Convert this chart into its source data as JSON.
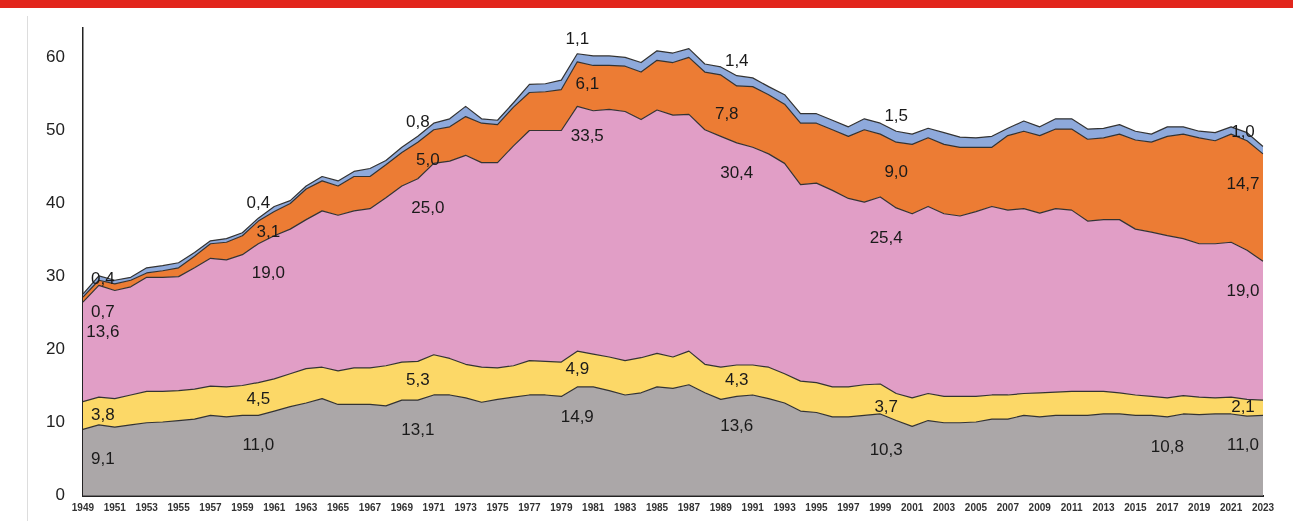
{
  "chart_data": {
    "type": "area",
    "stacked": true,
    "categories": [
      "1949",
      null,
      "1951",
      null,
      "1953",
      null,
      "1955",
      null,
      "1957",
      null,
      "1959",
      null,
      "1961",
      null,
      "1963",
      null,
      "1965",
      null,
      "1967",
      null,
      "1969",
      null,
      "1971",
      null,
      "1973",
      null,
      "1975",
      null,
      "1977",
      null,
      "1979",
      null,
      "1981",
      null,
      "1983",
      null,
      "1985",
      null,
      "1987",
      null,
      "1989",
      null,
      "1991",
      null,
      "1993",
      null,
      "1995",
      null,
      "1997",
      null,
      "1999",
      null,
      "2001",
      null,
      "2003",
      null,
      "2005",
      null,
      "2007",
      null,
      "2009",
      null,
      "2011",
      null,
      "2013",
      null,
      "2015",
      null,
      "2017",
      null,
      "2019",
      null,
      "2021",
      null,
      "2023"
    ],
    "ylim": [
      0,
      64
    ],
    "yticks": [
      0,
      10,
      20,
      30,
      40,
      50,
      60
    ],
    "grid": false,
    "legend": false,
    "series": [
      {
        "color": "#aba7a8",
        "values": [
          9.1,
          9.7,
          9.4,
          9.7,
          10.0,
          10.1,
          10.3,
          10.5,
          11.0,
          10.8,
          11.0,
          11.0,
          11.6,
          12.2,
          12.7,
          13.3,
          12.5,
          12.5,
          12.5,
          12.3,
          13.1,
          13.1,
          13.8,
          13.8,
          13.4,
          12.8,
          13.2,
          13.5,
          13.8,
          13.8,
          13.6,
          14.9,
          14.9,
          14.4,
          13.8,
          14.1,
          14.9,
          14.7,
          15.2,
          14.1,
          13.2,
          13.6,
          13.8,
          13.3,
          12.7,
          11.6,
          11.4,
          10.8,
          10.8,
          11.0,
          11.2,
          10.3,
          9.5,
          10.3,
          10.0,
          10.0,
          10.1,
          10.5,
          10.5,
          11.0,
          10.8,
          11.0,
          11.0,
          11.0,
          11.2,
          11.2,
          11.0,
          11.0,
          10.8,
          11.2,
          11.1,
          11.2,
          11.2,
          10.9,
          11.0
        ],
        "value_labels": [
          "9,1",
          null,
          null,
          null,
          null,
          null,
          null,
          null,
          null,
          null,
          null,
          "11,0",
          null,
          null,
          null,
          null,
          null,
          null,
          null,
          null,
          null,
          "13,1",
          null,
          null,
          null,
          null,
          null,
          null,
          null,
          null,
          null,
          "14,9",
          null,
          null,
          null,
          null,
          null,
          null,
          null,
          null,
          null,
          "13,6",
          null,
          null,
          null,
          null,
          null,
          null,
          null,
          null,
          null,
          "10,3",
          null,
          null,
          null,
          null,
          null,
          null,
          null,
          null,
          null,
          null,
          null,
          null,
          null,
          null,
          null,
          null,
          "10,8",
          null,
          null,
          null,
          null,
          null,
          "11,0"
        ]
      },
      {
        "color": "#fcd867",
        "values": [
          3.8,
          3.8,
          3.9,
          4.1,
          4.3,
          4.2,
          4.1,
          4.1,
          4.0,
          4.1,
          4.1,
          4.5,
          4.4,
          4.5,
          4.7,
          4.3,
          4.6,
          5.0,
          5.0,
          5.5,
          5.2,
          5.3,
          5.5,
          5.0,
          4.6,
          4.8,
          4.3,
          4.3,
          4.7,
          4.6,
          4.7,
          4.9,
          4.5,
          4.6,
          4.7,
          4.8,
          4.6,
          4.3,
          4.6,
          3.9,
          4.4,
          4.3,
          4.1,
          4.3,
          4.0,
          4.1,
          4.1,
          4.1,
          4.1,
          4.2,
          4.1,
          3.7,
          3.9,
          3.7,
          3.6,
          3.6,
          3.5,
          3.3,
          3.3,
          3.0,
          3.3,
          3.2,
          3.3,
          3.3,
          3.1,
          2.9,
          2.8,
          2.6,
          2.6,
          2.5,
          2.4,
          2.2,
          2.3,
          2.3,
          2.1
        ],
        "value_labels": [
          "3,8",
          null,
          null,
          null,
          null,
          null,
          null,
          null,
          null,
          null,
          null,
          "4,5",
          null,
          null,
          null,
          null,
          null,
          null,
          null,
          null,
          null,
          "5,3",
          null,
          null,
          null,
          null,
          null,
          null,
          null,
          null,
          null,
          "4,9",
          null,
          null,
          null,
          null,
          null,
          null,
          null,
          null,
          null,
          "4,3",
          null,
          null,
          null,
          null,
          null,
          null,
          null,
          null,
          null,
          "3,7",
          null,
          null,
          null,
          null,
          null,
          null,
          null,
          null,
          null,
          null,
          null,
          null,
          null,
          null,
          null,
          null,
          null,
          null,
          null,
          null,
          null,
          null,
          "2,1"
        ]
      },
      {
        "color": "#e19ec6",
        "values": [
          13.6,
          15.3,
          14.8,
          14.8,
          15.6,
          15.6,
          15.6,
          16.6,
          17.5,
          17.4,
          17.9,
          19.0,
          19.6,
          19.8,
          20.4,
          21.4,
          21.3,
          21.5,
          21.8,
          23.0,
          24.1,
          25.0,
          26.2,
          27.0,
          28.6,
          28.0,
          28.1,
          30.1,
          31.5,
          31.6,
          31.7,
          33.5,
          33.3,
          33.9,
          34.1,
          32.6,
          33.3,
          33.1,
          32.4,
          32.1,
          31.6,
          30.4,
          29.8,
          29.2,
          28.8,
          26.9,
          27.3,
          26.9,
          25.8,
          25.0,
          25.6,
          25.4,
          25.2,
          25.6,
          25.0,
          24.7,
          25.3,
          25.8,
          25.3,
          25.3,
          24.6,
          25.1,
          24.8,
          23.3,
          23.5,
          23.7,
          22.7,
          22.5,
          22.2,
          21.5,
          21.0,
          21.1,
          21.2,
          20.4,
          19.0
        ],
        "value_labels": [
          "13,6",
          null,
          null,
          null,
          null,
          null,
          null,
          null,
          null,
          null,
          null,
          "19,0",
          null,
          null,
          null,
          null,
          null,
          null,
          null,
          null,
          null,
          "25,0",
          null,
          null,
          null,
          null,
          null,
          null,
          null,
          null,
          null,
          "33,5",
          null,
          null,
          null,
          null,
          null,
          null,
          null,
          null,
          null,
          "30,4",
          null,
          null,
          null,
          null,
          null,
          null,
          null,
          null,
          null,
          "25,4",
          null,
          null,
          null,
          null,
          null,
          null,
          null,
          null,
          null,
          null,
          null,
          null,
          null,
          null,
          null,
          null,
          null,
          null,
          null,
          null,
          null,
          null,
          "19,0"
        ]
      },
      {
        "color": "#ec7c34",
        "values": [
          0.7,
          0.7,
          0.9,
          0.9,
          0.6,
          0.9,
          1.2,
          1.6,
          2.0,
          2.4,
          2.6,
          3.1,
          3.3,
          3.5,
          4.2,
          4.1,
          4.0,
          4.7,
          4.4,
          4.5,
          4.6,
          5.0,
          4.6,
          4.7,
          5.3,
          5.4,
          5.2,
          5.3,
          5.2,
          5.3,
          5.6,
          6.1,
          6.2,
          6.0,
          6.2,
          6.5,
          6.8,
          7.2,
          7.8,
          7.9,
          8.4,
          7.8,
          8.3,
          8.1,
          8.1,
          8.4,
          8.2,
          8.3,
          8.5,
          9.9,
          8.6,
          9.0,
          9.5,
          9.4,
          9.5,
          9.4,
          8.8,
          8.1,
          10.2,
          10.6,
          10.6,
          10.9,
          11.1,
          11.2,
          11.2,
          11.7,
          12.2,
          12.3,
          13.6,
          14.3,
          14.5,
          14.1,
          14.8,
          15.0,
          14.7
        ],
        "value_labels": [
          "0,7",
          null,
          null,
          null,
          null,
          null,
          null,
          null,
          null,
          null,
          null,
          "3,1",
          null,
          null,
          null,
          null,
          null,
          null,
          null,
          null,
          null,
          "5,0",
          null,
          null,
          null,
          null,
          null,
          null,
          null,
          null,
          null,
          "6,1",
          null,
          null,
          null,
          null,
          null,
          null,
          null,
          null,
          null,
          "7,8",
          null,
          null,
          null,
          null,
          null,
          null,
          null,
          null,
          null,
          "9,0",
          null,
          null,
          null,
          null,
          null,
          null,
          null,
          null,
          null,
          null,
          null,
          null,
          null,
          null,
          null,
          null,
          null,
          null,
          null,
          null,
          null,
          null,
          "14,7"
        ]
      },
      {
        "color": "#8ea9db",
        "values": [
          0.4,
          0.6,
          0.5,
          0.4,
          0.7,
          0.7,
          0.7,
          0.5,
          0.4,
          0.5,
          0.4,
          0.4,
          0.7,
          0.4,
          0.4,
          0.6,
          0.7,
          0.7,
          1.1,
          0.6,
          0.7,
          0.8,
          0.9,
          1.1,
          1.4,
          0.6,
          0.6,
          0.6,
          1.1,
          1.1,
          1.3,
          1.1,
          1.3,
          1.3,
          1.2,
          1.3,
          1.3,
          1.3,
          1.2,
          1.1,
          1.1,
          1.4,
          1.2,
          1.1,
          1.3,
          1.3,
          1.3,
          1.3,
          1.3,
          1.5,
          1.5,
          1.5,
          1.4,
          1.3,
          1.6,
          1.4,
          1.3,
          1.5,
          1.0,
          1.4,
          1.2,
          1.4,
          1.4,
          1.4,
          1.3,
          1.3,
          1.2,
          1.1,
          1.3,
          1.0,
          0.9,
          1.1,
          1.0,
          1.1,
          1.0
        ],
        "value_labels": [
          "0,4",
          null,
          null,
          null,
          null,
          null,
          null,
          null,
          null,
          null,
          null,
          "0,4",
          null,
          null,
          null,
          null,
          null,
          null,
          null,
          null,
          null,
          "0,8",
          null,
          null,
          null,
          null,
          null,
          null,
          null,
          null,
          null,
          "1,1",
          null,
          null,
          null,
          null,
          null,
          null,
          null,
          null,
          null,
          "1,4",
          null,
          null,
          null,
          null,
          null,
          null,
          null,
          null,
          null,
          "1,5",
          null,
          null,
          null,
          null,
          null,
          null,
          null,
          null,
          null,
          null,
          null,
          null,
          null,
          null,
          null,
          null,
          null,
          null,
          null,
          null,
          null,
          null,
          "1,0"
        ]
      }
    ]
  }
}
